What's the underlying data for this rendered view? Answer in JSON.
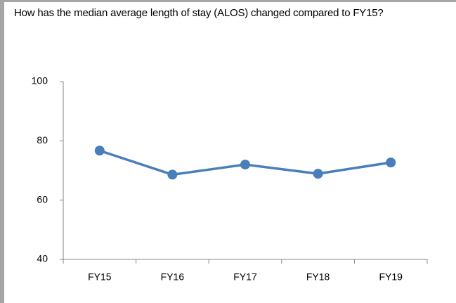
{
  "chart_data": {
    "type": "line",
    "title": "How has the median average length of stay (ALOS) changed compared to FY15?",
    "categories": [
      "FY15",
      "FY16",
      "FY17",
      "FY18",
      "FY19"
    ],
    "values": [
      76.7,
      68.6,
      72,
      68.9,
      72.7
    ],
    "color": "#4a7ebb",
    "ylim": [
      40,
      100
    ],
    "yticks": [
      40,
      60,
      80,
      100
    ],
    "grid": false
  }
}
